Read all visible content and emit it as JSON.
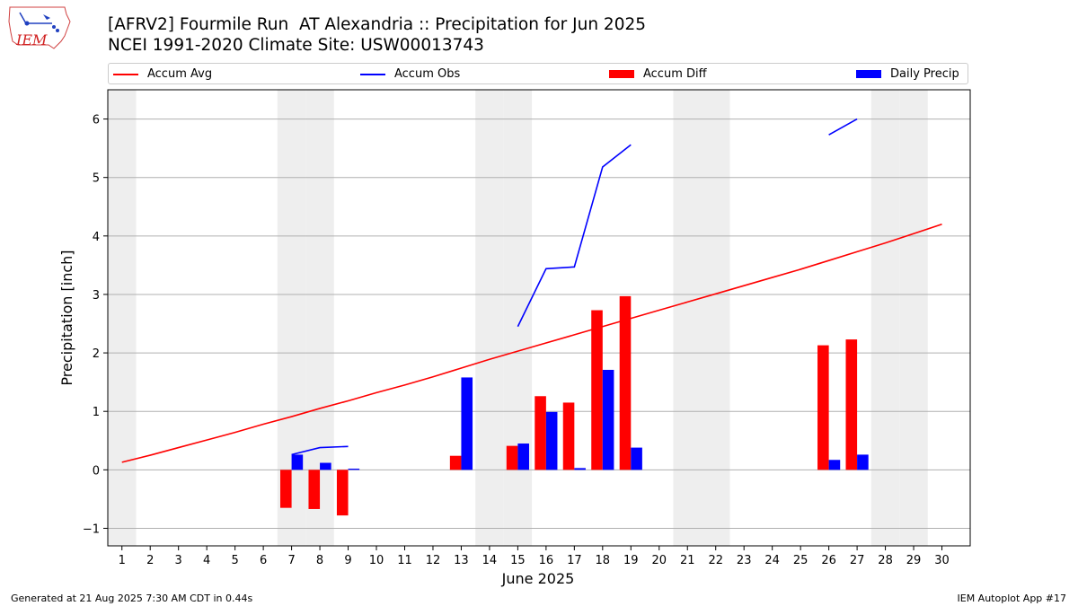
{
  "header": {
    "title_line1": "[AFRV2] Fourmile Run  AT Alexandria :: Precipitation for Jun 2025",
    "title_line2": "NCEI 1991-2020 Climate Site: USW00013743"
  },
  "logo": {
    "text": "IEM"
  },
  "footer": {
    "left": "Generated at 21 Aug 2025 7:30 AM CDT in 0.44s",
    "right": "IEM Autoplot App #17"
  },
  "legend": {
    "accum_avg": "Accum Avg",
    "accum_obs": "Accum Obs",
    "accum_diff": "Accum Diff",
    "daily_precip": "Daily Precip"
  },
  "colors": {
    "accum_avg": "#ff0000",
    "accum_obs": "#0000ff",
    "accum_diff": "#ff0000",
    "daily_precip": "#0000ff",
    "weekend_band": "#eeeeee",
    "grid": "#b0b0b0"
  },
  "chart_data": {
    "type": "bar",
    "xlabel": "June 2025",
    "ylabel": "Precipitation [inch]",
    "xlim": [
      0.5,
      31.0
    ],
    "ylim": [
      -1.3,
      6.5
    ],
    "yticks": [
      -1,
      0,
      1,
      2,
      3,
      4,
      5,
      6
    ],
    "xticks": [
      1,
      2,
      3,
      4,
      5,
      6,
      7,
      8,
      9,
      10,
      11,
      12,
      13,
      14,
      15,
      16,
      17,
      18,
      19,
      20,
      21,
      22,
      23,
      24,
      25,
      26,
      27,
      28,
      29,
      30
    ],
    "grid": "y",
    "legend_position": "top",
    "weekend_days": [
      1,
      7,
      8,
      14,
      15,
      21,
      22,
      28,
      29
    ],
    "accum_avg": {
      "x": [
        1,
        2,
        3,
        4,
        5,
        6,
        7,
        8,
        9,
        10,
        11,
        12,
        13,
        14,
        15,
        16,
        17,
        18,
        19,
        20,
        21,
        22,
        23,
        24,
        25,
        26,
        27,
        28,
        29,
        30
      ],
      "y": [
        0.13,
        0.25,
        0.38,
        0.51,
        0.64,
        0.78,
        0.91,
        1.05,
        1.18,
        1.32,
        1.45,
        1.59,
        1.74,
        1.89,
        2.03,
        2.17,
        2.31,
        2.45,
        2.59,
        2.73,
        2.87,
        3.01,
        3.15,
        3.29,
        3.43,
        3.58,
        3.73,
        3.88,
        4.04,
        4.2
      ]
    },
    "accum_obs": [
      {
        "x": [
          7,
          8,
          9
        ],
        "y": [
          0.26,
          0.38,
          0.4
        ]
      },
      {
        "x": [
          15,
          16,
          17,
          18,
          19
        ],
        "y": [
          2.45,
          3.44,
          3.47,
          5.18,
          5.56
        ]
      },
      {
        "x": [
          26,
          27
        ],
        "y": [
          5.73,
          6.0
        ]
      }
    ],
    "accum_diff": {
      "x": [
        7,
        8,
        9,
        13,
        15,
        16,
        17,
        18,
        19,
        26,
        27
      ],
      "values": [
        -0.65,
        -0.67,
        -0.78,
        0.24,
        0.41,
        1.26,
        1.15,
        2.73,
        2.97,
        2.13,
        2.23
      ]
    },
    "daily_precip": {
      "x": [
        7,
        8,
        9,
        13,
        15,
        16,
        17,
        18,
        19,
        26,
        27
      ],
      "values": [
        0.26,
        0.12,
        0.02,
        1.58,
        0.45,
        0.99,
        0.03,
        1.71,
        0.38,
        0.17,
        0.26
      ]
    }
  }
}
